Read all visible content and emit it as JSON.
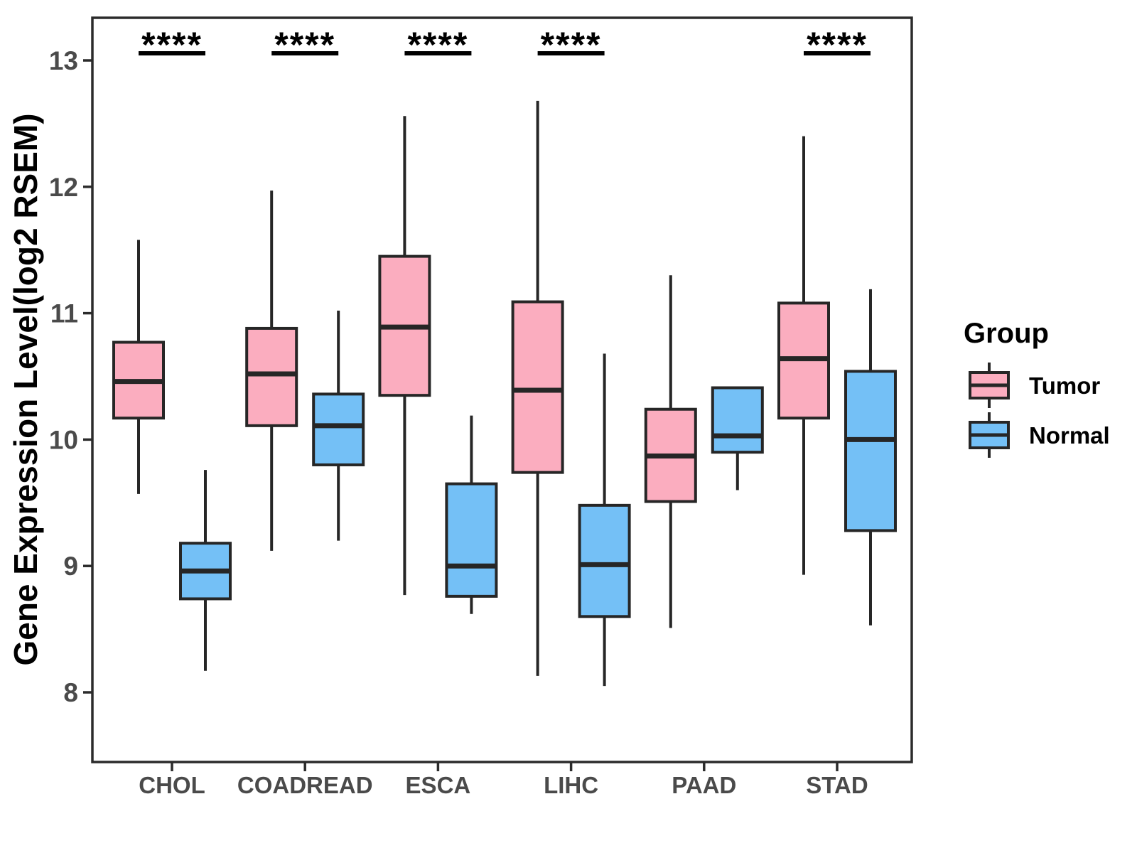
{
  "chart_data": {
    "type": "boxplot",
    "title": "",
    "xlabel": "",
    "ylabel": "Gene Expression Level(log2 RSEM)",
    "categories": [
      "CHOL",
      "COADREAD",
      "ESCA",
      "LIHC",
      "PAAD",
      "STAD"
    ],
    "y_ticks": [
      8,
      9,
      10,
      11,
      12,
      13
    ],
    "ylim": [
      7.45,
      13.34
    ],
    "grid": false,
    "legend_position": "right",
    "legend_title": "Group",
    "series": [
      {
        "name": "Tumor",
        "color": "#FBADBF",
        "boxes": [
          {
            "category": "CHOL",
            "whisker_low": 9.57,
            "q1": 10.17,
            "median": 10.46,
            "q3": 10.77,
            "whisker_high": 11.58
          },
          {
            "category": "COADREAD",
            "whisker_low": 9.12,
            "q1": 10.11,
            "median": 10.52,
            "q3": 10.88,
            "whisker_high": 11.97
          },
          {
            "category": "ESCA",
            "whisker_low": 8.77,
            "q1": 10.35,
            "median": 10.89,
            "q3": 11.45,
            "whisker_high": 12.56
          },
          {
            "category": "LIHC",
            "whisker_low": 8.13,
            "q1": 9.74,
            "median": 10.39,
            "q3": 11.09,
            "whisker_high": 12.68
          },
          {
            "category": "PAAD",
            "whisker_low": 8.51,
            "q1": 9.51,
            "median": 9.87,
            "q3": 10.24,
            "whisker_high": 11.3
          },
          {
            "category": "STAD",
            "whisker_low": 8.93,
            "q1": 10.17,
            "median": 10.64,
            "q3": 11.08,
            "whisker_high": 12.4
          }
        ]
      },
      {
        "name": "Normal",
        "color": "#74C0F6",
        "boxes": [
          {
            "category": "CHOL",
            "whisker_low": 8.17,
            "q1": 8.74,
            "median": 8.96,
            "q3": 9.18,
            "whisker_high": 9.76
          },
          {
            "category": "COADREAD",
            "whisker_low": 9.2,
            "q1": 9.8,
            "median": 10.11,
            "q3": 10.36,
            "whisker_high": 11.02
          },
          {
            "category": "ESCA",
            "whisker_low": 8.62,
            "q1": 8.76,
            "median": 9.0,
            "q3": 9.65,
            "whisker_high": 10.19
          },
          {
            "category": "LIHC",
            "whisker_low": 8.05,
            "q1": 8.6,
            "median": 9.01,
            "q3": 9.48,
            "whisker_high": 10.68
          },
          {
            "category": "PAAD",
            "whisker_low": 9.6,
            "q1": 9.9,
            "median": 10.03,
            "q3": 10.41,
            "whisker_high": 10.41
          },
          {
            "category": "STAD",
            "whisker_low": 8.53,
            "q1": 9.28,
            "median": 10.0,
            "q3": 10.54,
            "whisker_high": 11.19
          }
        ]
      }
    ],
    "significance": [
      "****",
      "****",
      "****",
      "****",
      null,
      "****"
    ]
  },
  "style": {
    "box_border_color": "#262626",
    "axis_color": "#2B2B2B",
    "tick_label_color": "#4A4A4A",
    "sig_color": "#000000",
    "background": "#FFFFFF"
  }
}
